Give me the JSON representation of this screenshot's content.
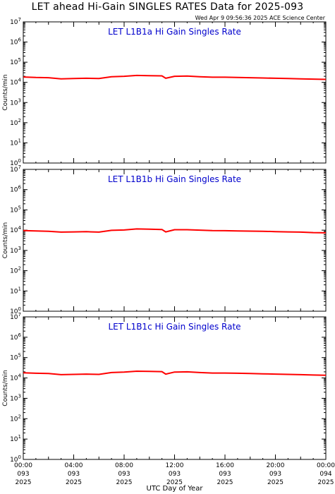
{
  "header": {
    "title": "LET ahead Hi-Gain SINGLES RATES Data for 2025-093",
    "timestamp": "Wed Apr  9 09:56:36 2025 ACE Science Center"
  },
  "colors": {
    "series": "#ff0000",
    "panel_title": "#0000cc",
    "axis": "#000000"
  },
  "chart_data": [
    {
      "type": "line",
      "title": "LET L1B1a Hi Gain Singles Rate",
      "ylabel": "Counts/min",
      "xlabel": "UTC Day of Year",
      "yscale": "log",
      "ylim": [
        1,
        10000000
      ],
      "xlim": [
        0,
        24
      ],
      "x": [
        0,
        1,
        2,
        3,
        4,
        5,
        6,
        7,
        8,
        9,
        10,
        11,
        11.3,
        12,
        13,
        14,
        15,
        16,
        17,
        18,
        19,
        20,
        21,
        22,
        23,
        24
      ],
      "series": [
        {
          "values": [
            18500,
            17500,
            17000,
            15000,
            15500,
            16000,
            15500,
            19000,
            20000,
            22000,
            21500,
            21000,
            16000,
            20000,
            20500,
            19000,
            18000,
            18000,
            17500,
            17000,
            16500,
            16000,
            15500,
            15000,
            14500,
            14000
          ]
        }
      ]
    },
    {
      "type": "line",
      "title": "LET L1B1b Hi Gain Singles Rate",
      "ylabel": "Counts/min",
      "xlabel": "UTC Day of Year",
      "yscale": "log",
      "ylim": [
        1,
        10000000
      ],
      "xlim": [
        0,
        24
      ],
      "x": [
        0,
        1,
        2,
        3,
        4,
        5,
        6,
        7,
        8,
        9,
        10,
        11,
        11.3,
        12,
        13,
        14,
        15,
        16,
        17,
        18,
        19,
        20,
        21,
        22,
        23,
        24
      ],
      "series": [
        {
          "values": [
            9500,
            9200,
            8800,
            8000,
            8200,
            8400,
            8000,
            9800,
            10200,
            11500,
            11200,
            10800,
            8200,
            10500,
            10500,
            10000,
            9500,
            9400,
            9200,
            9000,
            8800,
            8500,
            8200,
            8000,
            7600,
            7400
          ]
        }
      ]
    },
    {
      "type": "line",
      "title": "LET L1B1c Hi Gain Singles Rate",
      "ylabel": "Counts/min",
      "xlabel": "UTC Day of Year",
      "yscale": "log",
      "ylim": [
        1,
        10000000
      ],
      "xlim": [
        0,
        24
      ],
      "x": [
        0,
        1,
        2,
        3,
        4,
        5,
        6,
        7,
        8,
        9,
        10,
        11,
        11.3,
        12,
        13,
        14,
        15,
        16,
        17,
        18,
        19,
        20,
        21,
        22,
        23,
        24
      ],
      "series": [
        {
          "values": [
            18000,
            17000,
            16500,
            14500,
            15000,
            15500,
            15000,
            18500,
            19500,
            21500,
            21000,
            20500,
            15500,
            19500,
            20000,
            18500,
            17500,
            17500,
            17000,
            16500,
            16000,
            15500,
            15000,
            14500,
            14000,
            13500
          ]
        }
      ]
    }
  ],
  "x_ticks": [
    {
      "time": "00:00",
      "day": "093",
      "year": "2025"
    },
    {
      "time": "04:00",
      "day": "093",
      "year": "2025"
    },
    {
      "time": "08:00",
      "day": "093",
      "year": "2025"
    },
    {
      "time": "12:00",
      "day": "093",
      "year": "2025"
    },
    {
      "time": "16:00",
      "day": "093",
      "year": "2025"
    },
    {
      "time": "20:00",
      "day": "093",
      "year": "2025"
    },
    {
      "time": "00:00",
      "day": "094",
      "year": "2025"
    }
  ],
  "x_axis_label": "UTC Day of Year",
  "y_ticks": [
    0,
    1,
    2,
    3,
    4,
    5,
    6,
    7
  ]
}
